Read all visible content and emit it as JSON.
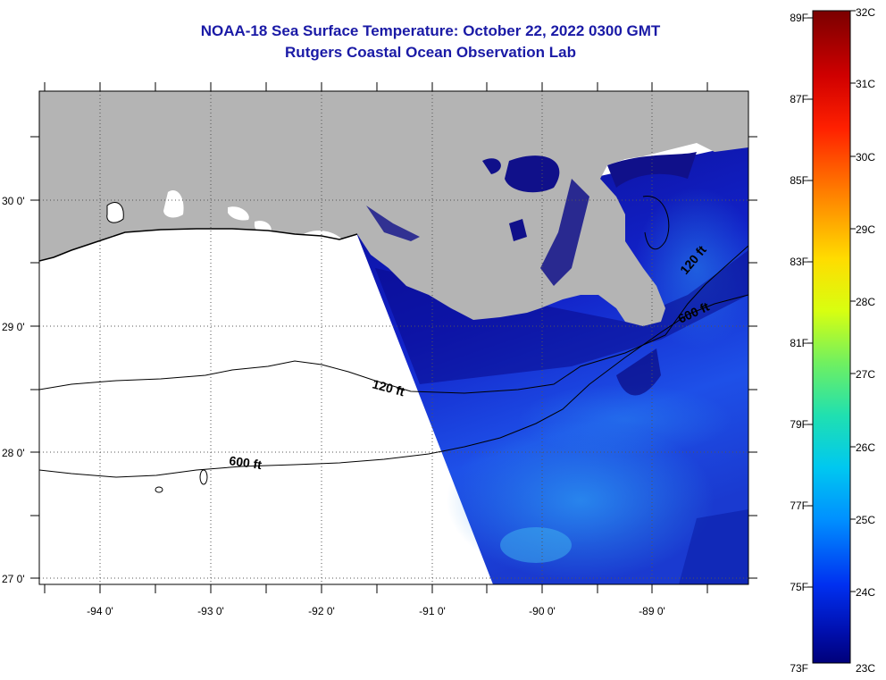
{
  "title": "NOAA-18 Sea Surface Temperature:  October 22, 2022 0300 GMT",
  "subtitle": "Rutgers Coastal Ocean Observation Lab",
  "map": {
    "lat_labels": [
      "30 0'",
      "29 0'",
      "28 0'",
      "27 0'"
    ],
    "lon_labels": [
      "-94 0'",
      "-93 0'",
      "-92 0'",
      "-91 0'",
      "-90 0'",
      "-89 0'"
    ],
    "contour_labels": [
      "120 ft",
      "600 ft",
      "120 ft",
      "600 ft"
    ],
    "land_color": "#b4b4b4",
    "no_data_color": "#ffffff"
  },
  "colorbar": {
    "fahrenheit": [
      "89F",
      "87F",
      "85F",
      "83F",
      "81F",
      "79F",
      "77F",
      "75F",
      "73F"
    ],
    "celsius": [
      "32C",
      "31C",
      "30C",
      "29C",
      "28C",
      "27C",
      "26C",
      "25C",
      "24C",
      "23C"
    ]
  }
}
